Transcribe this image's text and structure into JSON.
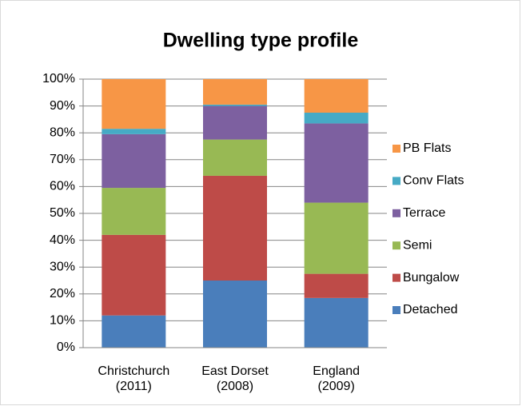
{
  "chart_data": {
    "type": "stacked_bar",
    "title": "Dwelling type profile",
    "categories": [
      "Christchurch\n(2011)",
      "East Dorset\n(2008)",
      "England\n(2009)"
    ],
    "series": [
      {
        "name": "Detached",
        "color": "#4a7ebb",
        "values": [
          12,
          25,
          18.5
        ]
      },
      {
        "name": "Bungalow",
        "color": "#be4b48",
        "values": [
          30,
          39,
          9
        ]
      },
      {
        "name": "Semi",
        "color": "#98b954",
        "values": [
          17.5,
          13.5,
          26.5
        ]
      },
      {
        "name": "Terrace",
        "color": "#7d60a0",
        "values": [
          20,
          12.5,
          29.5
        ]
      },
      {
        "name": "Conv Flats",
        "color": "#46aac5",
        "values": [
          2,
          0.5,
          4
        ]
      },
      {
        "name": "PB Flats",
        "color": "#f79646",
        "values": [
          18.5,
          9.5,
          12.5
        ]
      }
    ],
    "ylim": [
      0,
      100
    ],
    "yticks": [
      {
        "value": 0,
        "label": "0%"
      },
      {
        "value": 10,
        "label": "10%"
      },
      {
        "value": 20,
        "label": "20%"
      },
      {
        "value": 30,
        "label": "30%"
      },
      {
        "value": 40,
        "label": "40%"
      },
      {
        "value": 50,
        "label": "50%"
      },
      {
        "value": 60,
        "label": "60%"
      },
      {
        "value": 70,
        "label": "70%"
      },
      {
        "value": 80,
        "label": "80%"
      },
      {
        "value": 90,
        "label": "90%"
      },
      {
        "value": 100,
        "label": "100%"
      }
    ],
    "grid": true,
    "legend": "right"
  }
}
